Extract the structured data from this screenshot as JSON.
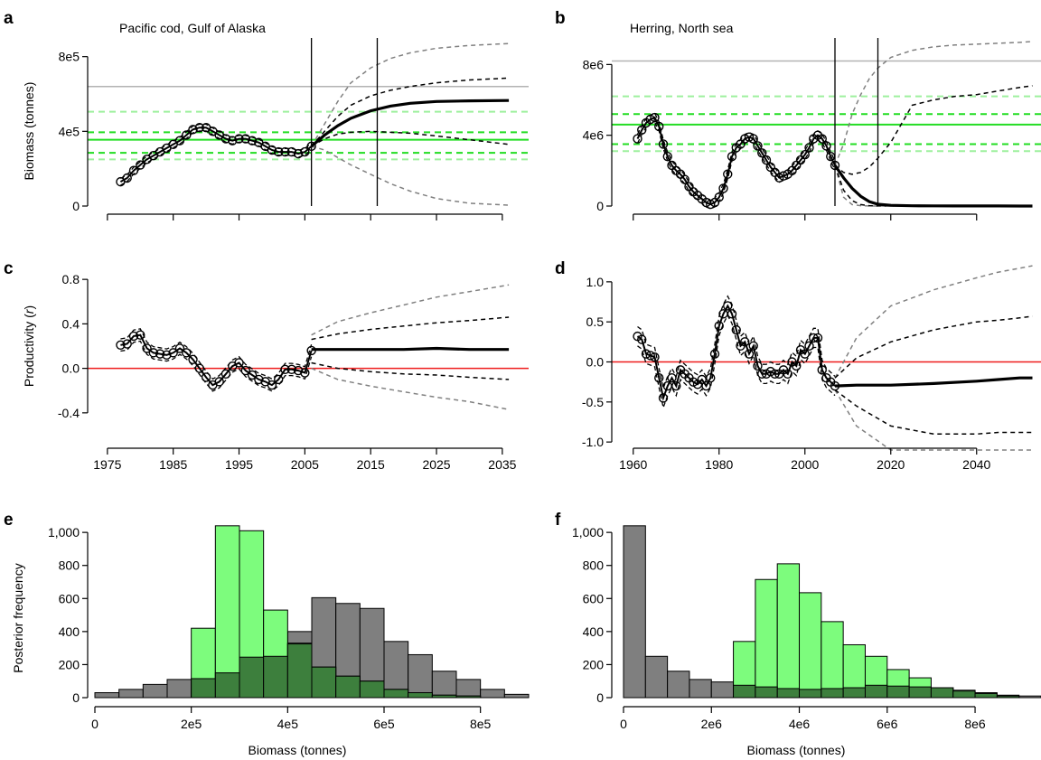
{
  "colors": {
    "observed": "#000000",
    "projection_mean": "#000000",
    "inner_interval": "#000000",
    "outer_interval": "#808080",
    "reference_grey": "#b3b3b3",
    "bmsy_green": "#22dd22",
    "ci_light_green": "#9ef09e",
    "zero_line": "#ee1c1c",
    "hist_grey": "#7f7f7f",
    "hist_light_green": "#7dfc7d",
    "hist_dark_green": "#3d7f3d"
  },
  "panels": {
    "a": {
      "letter": "a",
      "title": "Pacific cod, Gulf of Alaska",
      "ylabel": "Biomass (tonnes)",
      "yticks": [
        "0",
        "4e5",
        "8e5"
      ]
    },
    "b": {
      "letter": "b",
      "title": "Herring, North sea",
      "yticks": [
        "0",
        "4e6",
        "8e6"
      ]
    },
    "c": {
      "letter": "c",
      "ylabel": "Productivity (r)",
      "yticks": [
        "-0.4",
        "0.0",
        "0.4",
        "0.8"
      ],
      "xticks": [
        "1975",
        "1985",
        "1995",
        "2005",
        "2015",
        "2025",
        "2035"
      ]
    },
    "d": {
      "letter": "d",
      "yticks": [
        "-1.0",
        "-0.5",
        "0.0",
        "0.5",
        "1.0"
      ],
      "xticks": [
        "1960",
        "1980",
        "2000",
        "2020",
        "2040"
      ]
    },
    "e": {
      "letter": "e",
      "ylabel": "Posterior frequency",
      "xlabel": "Biomass (tonnes)",
      "yticks": [
        "0",
        "200",
        "400",
        "600",
        "800",
        "1,000"
      ],
      "xticks": [
        "0",
        "2e5",
        "4e5",
        "6e5",
        "8e5"
      ]
    },
    "f": {
      "letter": "f",
      "xlabel": "Biomass (tonnes)",
      "yticks": [
        "0",
        "200",
        "400",
        "600",
        "800",
        "1,000"
      ],
      "xticks": [
        "0",
        "2e6",
        "4e6",
        "6e6",
        "8e6"
      ]
    }
  },
  "chart_data": [
    {
      "panel": "a",
      "type": "line",
      "title": "Pacific cod, Gulf of Alaska",
      "xlabel": "",
      "ylabel": "Biomass (tonnes)",
      "xlim": [
        1972,
        2039
      ],
      "ylim": [
        0,
        900000
      ],
      "observed": {
        "x": [
          1977,
          1978,
          1979,
          1980,
          1981,
          1982,
          1983,
          1984,
          1985,
          1986,
          1987,
          1988,
          1989,
          1990,
          1991,
          1992,
          1993,
          1994,
          1995,
          1996,
          1997,
          1998,
          1999,
          2000,
          2001,
          2002,
          2003,
          2004,
          2005,
          2006
        ],
        "y": [
          130000,
          150000,
          190000,
          220000,
          250000,
          270000,
          290000,
          310000,
          330000,
          350000,
          380000,
          410000,
          420000,
          420000,
          400000,
          380000,
          360000,
          350000,
          360000,
          360000,
          350000,
          340000,
          320000,
          300000,
          290000,
          290000,
          290000,
          280000,
          290000,
          320000
        ]
      },
      "projection": {
        "x": [
          2006,
          2008,
          2010,
          2012,
          2015,
          2018,
          2021,
          2025,
          2030,
          2036
        ],
        "mean": [
          320000,
          380000,
          430000,
          470000,
          510000,
          535000,
          550000,
          560000,
          563000,
          565000
        ],
        "lower_inner": [
          320000,
          360000,
          385000,
          395000,
          400000,
          395000,
          390000,
          375000,
          355000,
          330000
        ],
        "upper_inner": [
          320000,
          400000,
          480000,
          540000,
          590000,
          620000,
          640000,
          660000,
          675000,
          685000
        ],
        "lower_outer": [
          320000,
          300000,
          260000,
          220000,
          170000,
          120000,
          80000,
          40000,
          15000,
          5000
        ],
        "upper_outer": [
          320000,
          440000,
          560000,
          660000,
          740000,
          790000,
          820000,
          845000,
          860000,
          870000
        ]
      },
      "reference_lines": {
        "grey": 640000,
        "green_solid": 355000,
        "green_dashed": [
          285000,
          395000
        ],
        "light_green_dashed": [
          250000,
          505000
        ]
      },
      "vertical_lines": [
        2006,
        2016
      ]
    },
    {
      "panel": "b",
      "type": "line",
      "title": "Herring, North sea",
      "xlabel": "",
      "ylabel": "Biomass (tonnes)",
      "xlim": [
        1955,
        2055
      ],
      "ylim": [
        0,
        9500000
      ],
      "observed": {
        "x": [
          1961,
          1962,
          1963,
          1964,
          1965,
          1966,
          1967,
          1968,
          1969,
          1970,
          1971,
          1972,
          1973,
          1974,
          1975,
          1976,
          1977,
          1978,
          1979,
          1980,
          1981,
          1982,
          1983,
          1984,
          1985,
          1986,
          1987,
          1988,
          1989,
          1990,
          1991,
          1992,
          1993,
          1994,
          1995,
          1996,
          1997,
          1998,
          1999,
          2000,
          2001,
          2002,
          2003,
          2004,
          2005,
          2006,
          2007
        ],
        "y": [
          3800000,
          4300000,
          4700000,
          4900000,
          5000000,
          4500000,
          3500000,
          2800000,
          2300000,
          2000000,
          1800000,
          1500000,
          1100000,
          800000,
          600000,
          400000,
          200000,
          100000,
          200000,
          500000,
          1000000,
          1800000,
          2800000,
          3300000,
          3500000,
          3800000,
          3900000,
          3800000,
          3400000,
          3000000,
          2600000,
          2200000,
          1900000,
          1600000,
          1700000,
          1800000,
          2000000,
          2300000,
          2600000,
          2900000,
          3300000,
          3800000,
          4000000,
          3800000,
          3400000,
          2800000,
          2300000
        ]
      },
      "projection": {
        "x": [
          2007,
          2009,
          2011,
          2013,
          2015,
          2017,
          2020,
          2025,
          2030,
          2035,
          2040,
          2045,
          2050,
          2053
        ],
        "mean": [
          2300000,
          1600000,
          1000000,
          550000,
          250000,
          100000,
          40000,
          15000,
          8000,
          5000,
          4000,
          3000,
          2000,
          2000
        ],
        "lower_inner": [
          2300000,
          900000,
          300000,
          80000,
          20000,
          5000,
          3000,
          2000,
          1000,
          1000,
          1000,
          1000,
          1000,
          1000
        ],
        "upper_inner": [
          2300000,
          1900000,
          1800000,
          1900000,
          2200000,
          2700000,
          3600000,
          5700000,
          6000000,
          6200000,
          6300000,
          6500000,
          6700000,
          6800000
        ],
        "lower_outer": [
          2300000,
          500000,
          80000,
          20000,
          5000,
          2000,
          1000,
          1000,
          1000,
          1000,
          1000,
          1000,
          1000,
          1000
        ],
        "upper_outer": [
          2300000,
          3500000,
          5200000,
          6300000,
          7200000,
          7800000,
          8400000,
          8800000,
          9000000,
          9100000,
          9150000,
          9200000,
          9250000,
          9300000
        ]
      },
      "reference_lines": {
        "grey": 8200000,
        "green_solid": 4600000,
        "green_dashed": [
          3500000,
          5200000
        ],
        "light_green_dashed": [
          3100000,
          6200000
        ]
      },
      "vertical_lines": [
        2007,
        2017
      ]
    },
    {
      "panel": "c",
      "type": "line",
      "title": "",
      "xlabel": "",
      "ylabel": "Productivity (r)",
      "xlim": [
        1972,
        2039
      ],
      "ylim": [
        -0.45,
        0.85
      ],
      "observed": {
        "x": [
          1977,
          1978,
          1979,
          1980,
          1981,
          1982,
          1983,
          1984,
          1985,
          1986,
          1987,
          1988,
          1989,
          1990,
          1991,
          1992,
          1993,
          1994,
          1995,
          1996,
          1997,
          1998,
          1999,
          2000,
          2001,
          2002,
          2003,
          2004,
          2005,
          2006
        ],
        "y": [
          0.21,
          0.22,
          0.29,
          0.3,
          0.18,
          0.14,
          0.13,
          0.12,
          0.14,
          0.18,
          0.14,
          0.08,
          0.0,
          -0.08,
          -0.15,
          -0.12,
          -0.05,
          0.02,
          0.05,
          -0.02,
          -0.06,
          -0.1,
          -0.12,
          -0.15,
          -0.1,
          -0.01,
          -0.01,
          -0.02,
          -0.04,
          0.16
        ]
      },
      "projection": {
        "x": [
          2006,
          2010,
          2015,
          2020,
          2025,
          2030,
          2036
        ],
        "mean": [
          0.17,
          0.17,
          0.17,
          0.17,
          0.18,
          0.17,
          0.17
        ],
        "lower_inner": [
          0.05,
          0.0,
          -0.03,
          -0.05,
          -0.06,
          -0.08,
          -0.1
        ],
        "upper_inner": [
          0.26,
          0.31,
          0.35,
          0.38,
          0.41,
          0.43,
          0.46
        ],
        "lower_outer": [
          0.0,
          -0.1,
          -0.16,
          -0.21,
          -0.26,
          -0.3,
          -0.37
        ],
        "upper_outer": [
          0.3,
          0.42,
          0.5,
          0.57,
          0.64,
          0.69,
          0.75
        ]
      },
      "zero_line": 0.0
    },
    {
      "panel": "d",
      "type": "line",
      "title": "",
      "xlabel": "",
      "ylabel": "Productivity (r)",
      "xlim": [
        1955,
        2055
      ],
      "ylim": [
        -1.1,
        1.1
      ],
      "observed": {
        "x": [
          1961,
          1962,
          1963,
          1964,
          1965,
          1966,
          1967,
          1968,
          1969,
          1970,
          1971,
          1972,
          1973,
          1974,
          1975,
          1976,
          1977,
          1978,
          1979,
          1980,
          1981,
          1982,
          1983,
          1984,
          1985,
          1986,
          1987,
          1988,
          1989,
          1990,
          1991,
          1992,
          1993,
          1994,
          1995,
          1996,
          1997,
          1998,
          1999,
          2000,
          2001,
          2002,
          2003,
          2004,
          2005,
          2006,
          2007
        ],
        "y": [
          0.32,
          0.28,
          0.1,
          0.08,
          0.06,
          -0.2,
          -0.45,
          -0.3,
          -0.2,
          -0.3,
          -0.1,
          -0.15,
          -0.2,
          -0.25,
          -0.28,
          -0.22,
          -0.3,
          -0.2,
          0.1,
          0.45,
          0.6,
          0.7,
          0.6,
          0.4,
          0.2,
          0.25,
          0.1,
          0.2,
          -0.05,
          -0.15,
          -0.15,
          -0.12,
          -0.15,
          -0.15,
          -0.1,
          -0.15,
          0.0,
          -0.05,
          0.15,
          0.1,
          0.2,
          0.3,
          0.3,
          -0.1,
          -0.2,
          -0.25,
          -0.3
        ]
      },
      "projection": {
        "x": [
          2007,
          2012,
          2020,
          2030,
          2040,
          2045,
          2050,
          2053
        ],
        "mean": [
          -0.3,
          -0.29,
          -0.29,
          -0.27,
          -0.24,
          -0.22,
          -0.2,
          -0.2
        ],
        "lower_inner": [
          -0.35,
          -0.55,
          -0.8,
          -0.9,
          -0.9,
          -0.88,
          -0.88,
          -0.88
        ],
        "upper_inner": [
          -0.2,
          0.05,
          0.25,
          0.4,
          0.5,
          0.52,
          0.55,
          0.57
        ],
        "lower_outer": [
          -0.35,
          -0.8,
          -1.1,
          -1.1,
          -1.1,
          -1.1,
          -1.1,
          -1.1
        ],
        "upper_outer": [
          -0.2,
          0.3,
          0.7,
          0.9,
          1.05,
          1.12,
          1.17,
          1.2
        ]
      },
      "zero_line": 0.0
    },
    {
      "panel": "e",
      "type": "bar",
      "title": "",
      "xlabel": "Biomass (tonnes)",
      "ylabel": "Posterior frequency",
      "xlim": [
        0,
        900000
      ],
      "ylim": [
        0,
        1050
      ],
      "bin_width": 50000,
      "bin_starts": [
        0,
        50000,
        100000,
        150000,
        200000,
        250000,
        300000,
        350000,
        400000,
        450000,
        500000,
        550000,
        600000,
        650000,
        700000,
        750000,
        800000,
        850000
      ],
      "series": [
        {
          "name": "grey",
          "values": [
            30,
            50,
            80,
            110,
            115,
            150,
            245,
            250,
            400,
            605,
            570,
            540,
            340,
            260,
            160,
            110,
            50,
            20
          ]
        },
        {
          "name": "light_green",
          "values": [
            0,
            0,
            0,
            0,
            420,
            1040,
            1010,
            530,
            330,
            185,
            130,
            100,
            50,
            30,
            15,
            10,
            0,
            0
          ]
        },
        {
          "name": "dark_green",
          "values": [
            0,
            0,
            0,
            0,
            115,
            150,
            245,
            250,
            325,
            185,
            130,
            100,
            50,
            30,
            15,
            10,
            0,
            0
          ]
        }
      ]
    },
    {
      "panel": "f",
      "type": "bar",
      "title": "",
      "xlabel": "Biomass (tonnes)",
      "ylabel": "Posterior frequency",
      "xlim": [
        0,
        9500000
      ],
      "ylim": [
        0,
        1050
      ],
      "bin_width": 500000,
      "bin_starts": [
        0,
        500000,
        1000000,
        1500000,
        2000000,
        2500000,
        3000000,
        3500000,
        4000000,
        4500000,
        5000000,
        5500000,
        6000000,
        6500000,
        7000000,
        7500000,
        8000000,
        8500000,
        9000000
      ],
      "series": [
        {
          "name": "grey",
          "values": [
            1040,
            250,
            160,
            110,
            95,
            75,
            65,
            55,
            50,
            55,
            60,
            75,
            70,
            65,
            60,
            40,
            30,
            15,
            10
          ]
        },
        {
          "name": "light_green",
          "values": [
            0,
            0,
            0,
            0,
            0,
            340,
            715,
            810,
            635,
            460,
            320,
            250,
            170,
            120,
            60,
            45,
            25,
            10,
            0
          ]
        },
        {
          "name": "dark_green",
          "values": [
            0,
            0,
            0,
            0,
            0,
            75,
            65,
            55,
            50,
            55,
            60,
            75,
            70,
            65,
            60,
            40,
            25,
            10,
            0
          ]
        }
      ]
    }
  ]
}
